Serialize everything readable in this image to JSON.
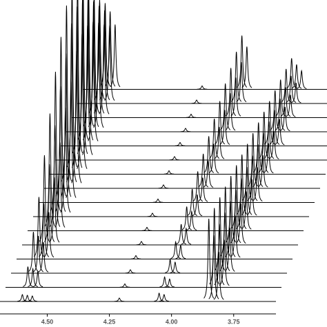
{
  "chart_data": {
    "type": "waterfall",
    "xlim": [
      4.69,
      3.58
    ],
    "xticks": [
      {
        "value": 4.5,
        "label": "4.50"
      },
      {
        "value": 4.25,
        "label": "4.25"
      },
      {
        "value": 4.0,
        "label": "4.00"
      },
      {
        "value": 3.75,
        "label": "3.75"
      }
    ],
    "x": [
      4.6,
      4.58,
      4.56,
      4.21,
      4.05,
      4.03,
      3.85,
      3.83,
      3.81
    ],
    "color": "#000000",
    "series": [
      {
        "values": [
          10,
          9,
          8,
          5,
          12,
          10,
          120,
          96,
          72
        ]
      },
      {
        "values": [
          30,
          27,
          23,
          5,
          15,
          12,
          115,
          92,
          69
        ]
      },
      {
        "values": [
          60,
          54,
          45,
          5,
          20,
          16,
          110,
          88,
          66
        ]
      },
      {
        "values": [
          90,
          81,
          68,
          5,
          25,
          20,
          105,
          84,
          63
        ]
      },
      {
        "values": [
          130,
          117,
          98,
          5,
          30,
          24,
          100,
          80,
          60
        ]
      },
      {
        "values": [
          170,
          153,
          128,
          5,
          35,
          28,
          95,
          76,
          57
        ]
      },
      {
        "values": [
          210,
          189,
          158,
          5,
          40,
          32,
          90,
          72,
          54
        ]
      },
      {
        "values": [
          240,
          216,
          180,
          5,
          45,
          36,
          85,
          68,
          51
        ]
      },
      {
        "values": [
          265,
          239,
          199,
          5,
          50,
          40,
          80,
          64,
          48
        ]
      },
      {
        "values": [
          270,
          243,
          203,
          5,
          55,
          44,
          75,
          60,
          45
        ]
      },
      {
        "values": [
          260,
          234,
          195,
          5,
          60,
          48,
          70,
          56,
          42
        ]
      },
      {
        "values": [
          240,
          216,
          180,
          5,
          65,
          52,
          65,
          52,
          39
        ]
      },
      {
        "values": [
          210,
          189,
          158,
          5,
          70,
          56,
          60,
          48,
          36
        ]
      },
      {
        "values": [
          180,
          162,
          135,
          5,
          72,
          58,
          55,
          44,
          33
        ]
      },
      {
        "values": [
          150,
          135,
          113,
          5,
          75,
          60,
          50,
          40,
          30
        ]
      },
      {
        "values": [
          125,
          113,
          94,
          5,
          78,
          62,
          45,
          36,
          27
        ]
      }
    ]
  }
}
